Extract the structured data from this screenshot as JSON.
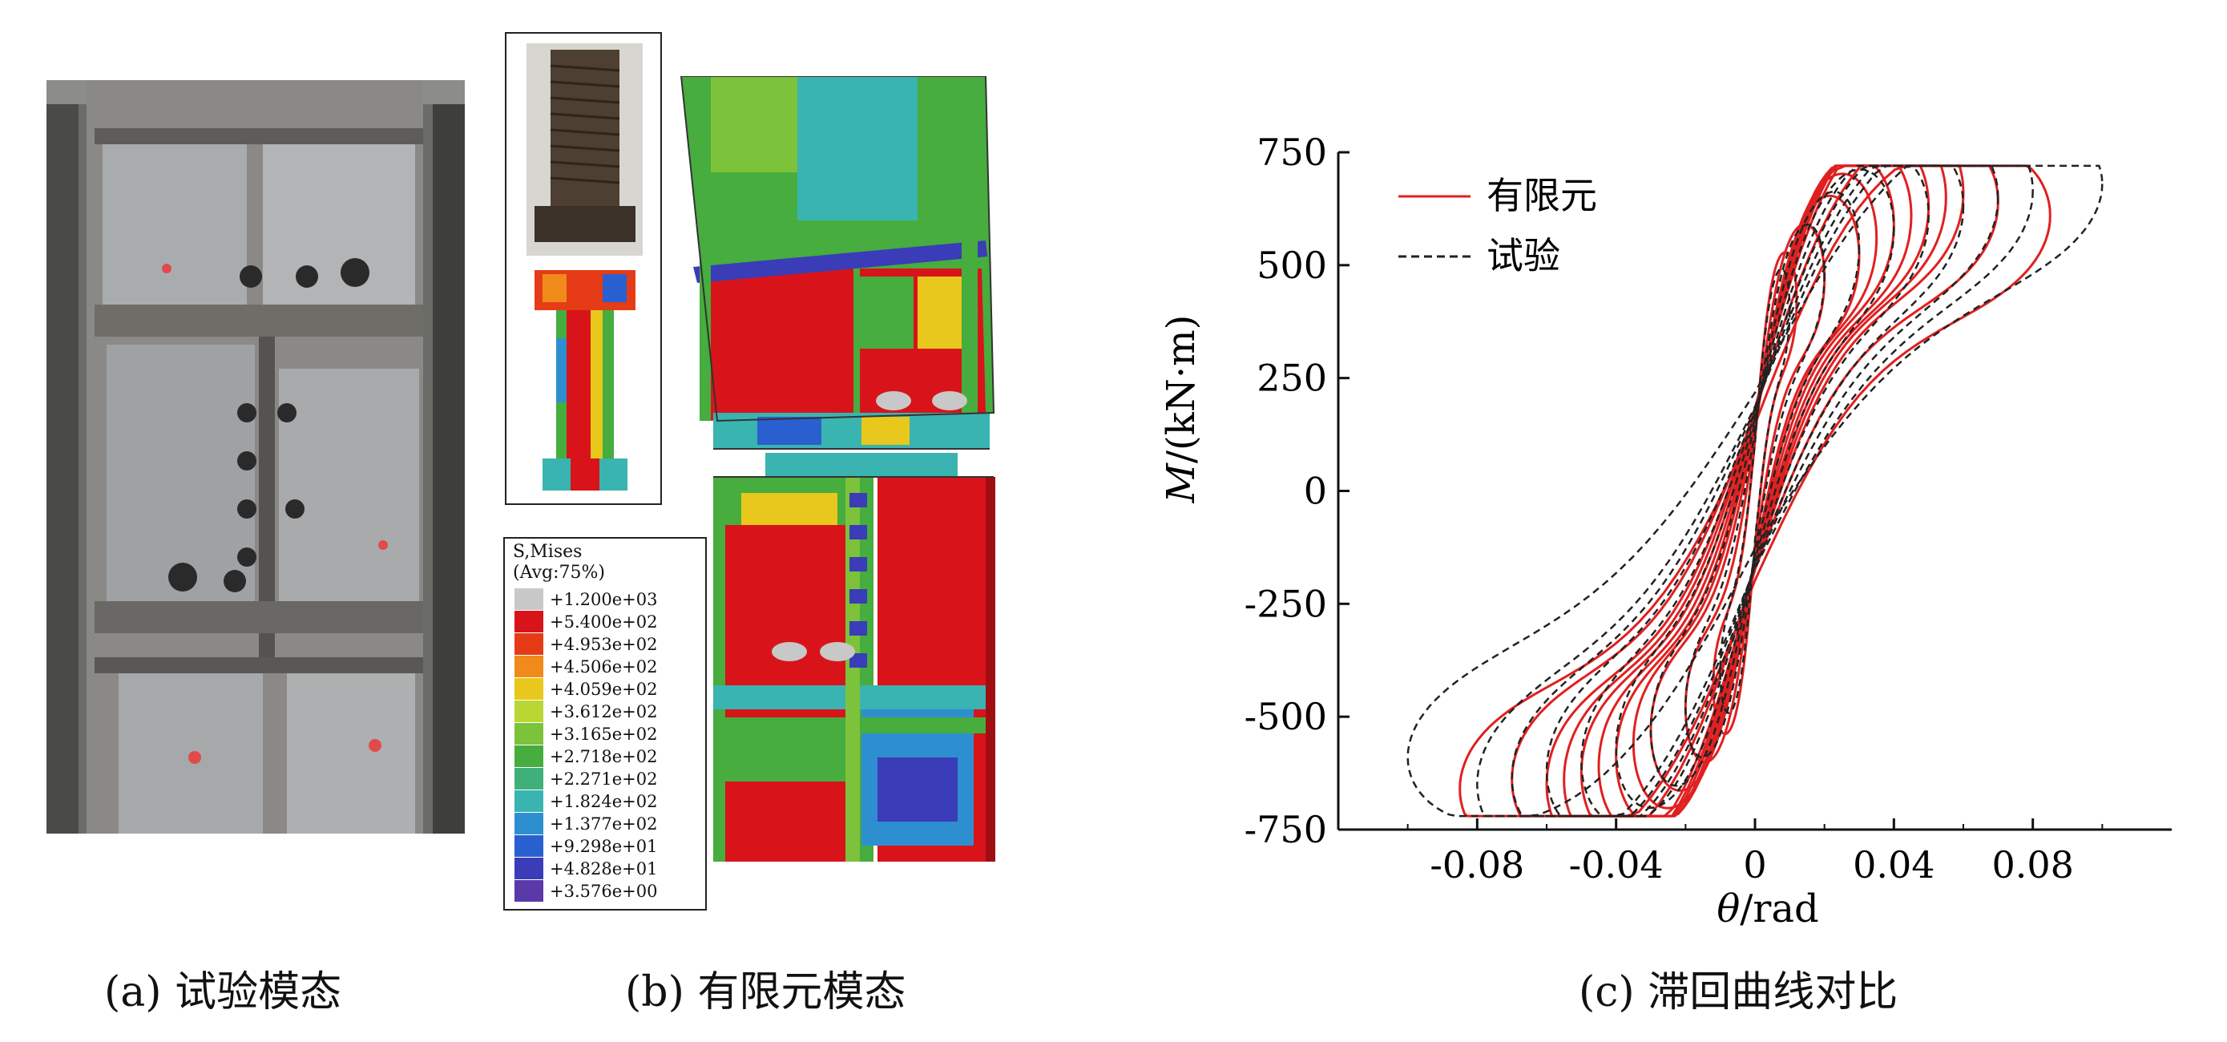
{
  "captions": {
    "a": "(a) 试验模态",
    "b": "(b) 有限元模态",
    "c": "(c) 滞回曲线对比"
  },
  "fe_legend": {
    "title1": "S,Mises",
    "title2": "(Avg:75%)",
    "entries": [
      {
        "value": "+1.200e+03",
        "color": "#c8c8c8"
      },
      {
        "value": "+5.400e+02",
        "color": "#d8141a"
      },
      {
        "value": "+4.953e+02",
        "color": "#e53c17"
      },
      {
        "value": "+4.506e+02",
        "color": "#f08a1a"
      },
      {
        "value": "+4.059e+02",
        "color": "#e8c81c"
      },
      {
        "value": "+3.612e+02",
        "color": "#b8d634"
      },
      {
        "value": "+3.165e+02",
        "color": "#7cc23a"
      },
      {
        "value": "+2.718e+02",
        "color": "#46ad3e"
      },
      {
        "value": "+2.271e+02",
        "color": "#3fb07a"
      },
      {
        "value": "+1.824e+02",
        "color": "#3ab4b0"
      },
      {
        "value": "+1.377e+02",
        "color": "#2e8fd0"
      },
      {
        "value": "+9.298e+01",
        "color": "#2a5fd0"
      },
      {
        "value": "+4.828e+01",
        "color": "#3a3cb8"
      },
      {
        "value": "+3.576e+00",
        "color": "#5a3aa8"
      }
    ]
  },
  "chart_data": {
    "type": "line",
    "xlabel_italic": "θ",
    "xlabel_rest": "/rad",
    "ylabel_italic": "M",
    "ylabel_rest": "/(kN·m)",
    "xlim": [
      -0.12,
      0.12
    ],
    "ylim": [
      -750,
      750
    ],
    "xticks": [
      -0.08,
      -0.04,
      0,
      0.04,
      0.08
    ],
    "xtick_labels": [
      "-0.08",
      "-0.04",
      "0",
      "0.04",
      "0.08"
    ],
    "yticks": [
      750,
      500,
      250,
      0,
      -250,
      -500,
      -750
    ],
    "ytick_labels": [
      "750",
      "500",
      "250",
      "0",
      "-250",
      "-500",
      "-750"
    ],
    "legend_position": "top-left",
    "series": [
      {
        "name": "有限元",
        "color": "#e02020",
        "style": "solid",
        "amplitudes": [
          0.012,
          0.02,
          0.03,
          0.035,
          0.04,
          0.045,
          0.05,
          0.055,
          0.06,
          0.07,
          0.085
        ],
        "peak_moments": [
          420,
          470,
          520,
          560,
          590,
          610,
          630,
          650,
          660,
          640,
          610
        ],
        "min_moments": [
          -430,
          -480,
          -530,
          -560,
          -590,
          -610,
          -625,
          -640,
          -650,
          -640,
          -660
        ]
      },
      {
        "name": "试验",
        "color": "#222222",
        "style": "dashed",
        "amplitudes": [
          0.01,
          0.02,
          0.03,
          0.04,
          0.05,
          0.06,
          0.07,
          0.08,
          0.1
        ],
        "peak_moments": [
          400,
          480,
          540,
          580,
          610,
          630,
          650,
          665,
          680
        ],
        "min_moments": [
          -400,
          -480,
          -530,
          -570,
          -600,
          -620,
          -635,
          -650,
          -590
        ]
      }
    ]
  }
}
